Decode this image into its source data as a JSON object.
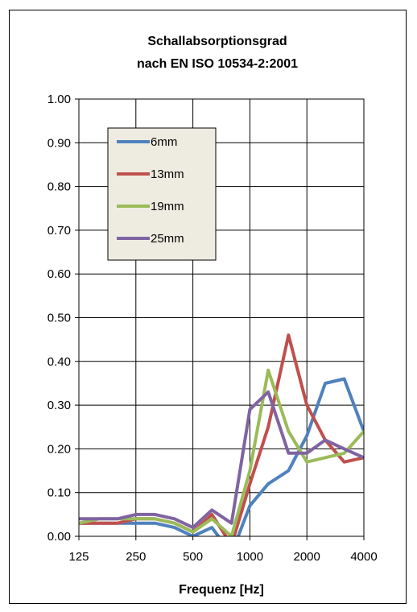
{
  "chart_data": {
    "type": "line",
    "title": [
      "Schallabsorptionsgrad",
      "nach EN ISO 10534-2:2001"
    ],
    "xlabel": "Frequenz [Hz]",
    "ylabel": "",
    "x_scale": "log",
    "x": [
      125,
      160,
      200,
      250,
      315,
      400,
      500,
      630,
      800,
      1000,
      1250,
      1600,
      2000,
      2500,
      3150,
      4000
    ],
    "xticks": [
      "125",
      "250",
      "500",
      "1000",
      "2000",
      "4000"
    ],
    "xlim": [
      125,
      4000
    ],
    "ylim": [
      0,
      1
    ],
    "yticks": [
      "0.00",
      "0.10",
      "0.20",
      "0.30",
      "0.40",
      "0.50",
      "0.60",
      "0.70",
      "0.80",
      "0.90",
      "1.00"
    ],
    "grid": true,
    "legend_position": "top-left",
    "series": [
      {
        "name": "6mm",
        "color": "#4f81bd",
        "values": [
          0.03,
          0.03,
          0.03,
          0.03,
          0.03,
          0.02,
          0.0,
          0.02,
          -0.04,
          0.07,
          0.12,
          0.15,
          0.23,
          0.35,
          0.36,
          0.24
        ]
      },
      {
        "name": "13mm",
        "color": "#c0504d",
        "values": [
          0.03,
          0.03,
          0.03,
          0.04,
          0.04,
          0.03,
          0.01,
          0.05,
          -0.02,
          0.12,
          0.25,
          0.46,
          0.3,
          0.22,
          0.17,
          0.18
        ]
      },
      {
        "name": "19mm",
        "color": "#9bbb59",
        "values": [
          0.03,
          0.04,
          0.04,
          0.04,
          0.04,
          0.03,
          0.01,
          0.04,
          0.0,
          0.15,
          0.38,
          0.24,
          0.17,
          0.18,
          0.19,
          0.24
        ]
      },
      {
        "name": "25mm",
        "color": "#8064a2",
        "values": [
          0.04,
          0.04,
          0.04,
          0.05,
          0.05,
          0.04,
          0.02,
          0.06,
          0.03,
          0.29,
          0.33,
          0.19,
          0.19,
          0.22,
          0.2,
          0.18
        ]
      }
    ]
  }
}
